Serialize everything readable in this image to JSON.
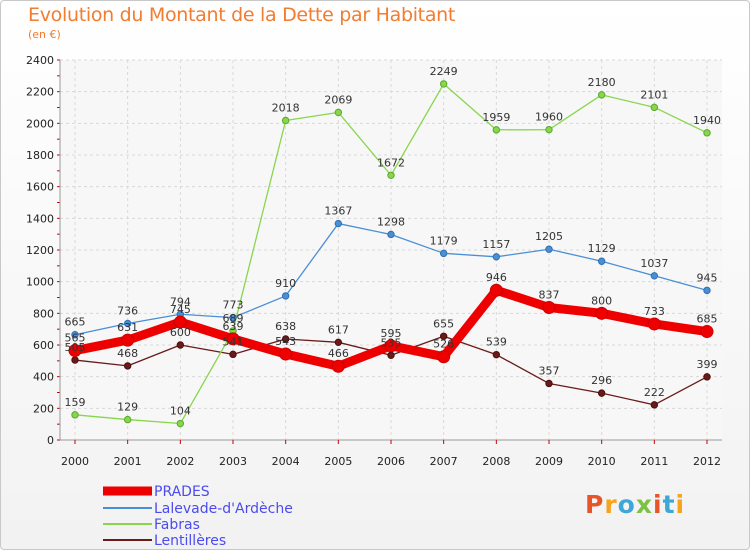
{
  "header": {
    "title": "Evolution du Montant de la Dette par Habitant",
    "subtitle": "(en €)"
  },
  "logo": {
    "text": "Proxiti",
    "colors": [
      "#e8542a",
      "#f7a31c",
      "#3da8d6",
      "#7cc142",
      "#e8542a",
      "#3da8d6",
      "#f7a31c"
    ]
  },
  "chart_data": {
    "type": "line",
    "x": [
      "2000",
      "2001",
      "2002",
      "2003",
      "2004",
      "2005",
      "2006",
      "2007",
      "2008",
      "2009",
      "2010",
      "2011",
      "2012"
    ],
    "ylim": [
      0,
      2400
    ],
    "yticks": [
      0,
      200,
      400,
      600,
      800,
      1000,
      1200,
      1400,
      1600,
      1800,
      2000,
      2200,
      2400
    ],
    "grid": true,
    "legend_position": "bottom-left",
    "series": [
      {
        "name": "PRADES",
        "color": "#ee0000",
        "values": [
          565,
          631,
          745,
          639,
          543,
          466,
          595,
          526,
          946,
          837,
          800,
          733,
          685
        ]
      },
      {
        "name": "Lalevade-d'Ardèche",
        "color": "#4a8fd4",
        "values": [
          665,
          736,
          794,
          773,
          910,
          1367,
          1298,
          1179,
          1157,
          1205,
          1129,
          1037,
          945
        ]
      },
      {
        "name": "Fabras",
        "color": "#88d64c",
        "values": [
          159,
          129,
          104,
          689,
          2018,
          2069,
          1672,
          2249,
          1959,
          1960,
          2180,
          2101,
          1940
        ]
      },
      {
        "name": "Lentillères",
        "color": "#6b1a1a",
        "values": [
          505,
          468,
          600,
          541,
          638,
          617,
          535,
          655,
          539,
          357,
          296,
          222,
          399
        ]
      }
    ]
  }
}
